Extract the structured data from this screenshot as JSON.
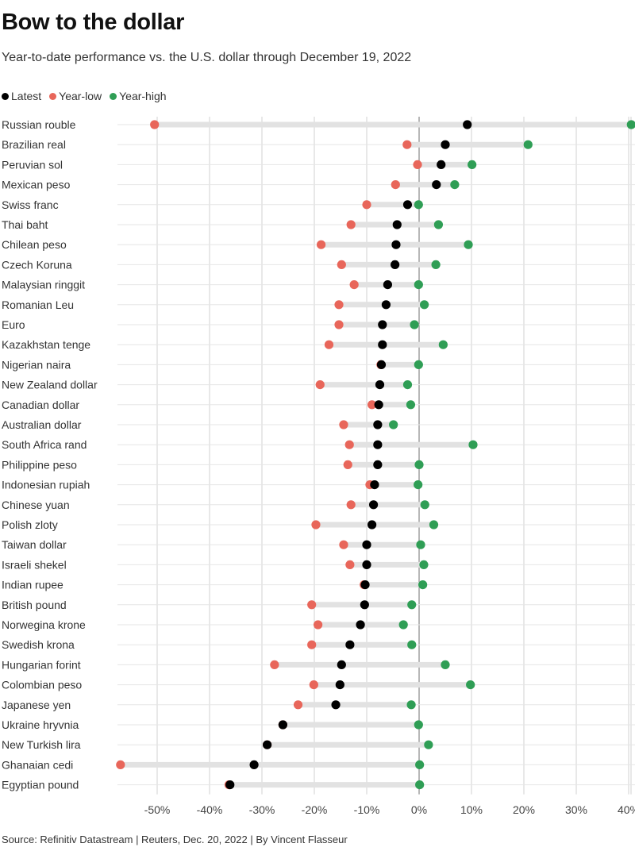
{
  "title": "Bow to the dollar",
  "subtitle": "Year-to-date performance vs. the U.S. dollar through December 19, 2022",
  "source": "Source: Refinitiv Datastream | Reuters, Dec. 20, 2022 | By Vincent Flasseur",
  "colors": {
    "latest": "#000000",
    "low": "#e8665a",
    "high": "#2f9e55",
    "bar": "#e2e2e2",
    "grid": "#d0d0d0",
    "zero": "#999999"
  },
  "chart_data": {
    "type": "dot-range",
    "title": "Bow to the dollar",
    "subtitle": "Year-to-date performance vs. the U.S. dollar through December 19, 2022",
    "xlim": [
      -58,
      41
    ],
    "x_ticks": [
      -50,
      -40,
      -30,
      -20,
      -10,
      0,
      10,
      20,
      30,
      40
    ],
    "x_tick_labels": [
      "-50%",
      "-40%",
      "-30%",
      "-20%",
      "-10%",
      "0%",
      "10%",
      "20%",
      "30%",
      "40%"
    ],
    "grid": true,
    "legend_position": "top-left",
    "legend": [
      {
        "key": "latest",
        "label": "Latest"
      },
      {
        "key": "low",
        "label": "Year-low"
      },
      {
        "key": "high",
        "label": "Year-high"
      }
    ],
    "categories": [
      "Russian rouble",
      "Brazilian real",
      "Peruvian sol",
      "Mexican peso",
      "Swiss franc",
      "Thai baht",
      "Chilean peso",
      "Czech Koruna",
      "Malaysian ringgit",
      "Romanian Leu",
      "Euro",
      "Kazakhstan tenge",
      "Nigerian naira",
      "New Zealand dollar",
      "Canadian dollar",
      "Australian dollar",
      "South Africa rand",
      "Philippine peso",
      "Indonesian rupiah",
      "Chinese yuan",
      "Polish zloty",
      "Taiwan dollar",
      "Israeli shekel",
      "Indian rupee",
      "British pound",
      "Norwegina krone",
      "Swedish krona",
      "Hungarian forint",
      "Colombian peso",
      "Japanese yen",
      "Ukraine hryvnia",
      "New Turkish lira",
      "Ghanaian cedi",
      "Egyptian pound"
    ],
    "series": [
      {
        "name": "Latest",
        "key": "latest",
        "values": [
          9.2,
          5.0,
          4.2,
          3.3,
          -2.2,
          -4.2,
          -4.4,
          -4.6,
          -6.0,
          -6.3,
          -7.0,
          -7.0,
          -7.2,
          -7.5,
          -7.7,
          -7.9,
          -7.9,
          -7.9,
          -8.5,
          -8.7,
          -9.0,
          -10.0,
          -10.0,
          -10.3,
          -10.4,
          -11.2,
          -13.2,
          -14.8,
          -15.1,
          -15.9,
          -26.0,
          -29.0,
          -31.5,
          -36.1
        ]
      },
      {
        "name": "Year-low",
        "key": "low",
        "values": [
          -50.5,
          -2.3,
          -0.3,
          -4.5,
          -10.0,
          -13.0,
          -18.7,
          -14.8,
          -12.4,
          -15.3,
          -15.3,
          -17.2,
          -7.3,
          -18.9,
          -9.0,
          -14.4,
          -13.3,
          -13.6,
          -9.4,
          -13.0,
          -19.7,
          -14.4,
          -13.2,
          -10.5,
          -20.5,
          -19.3,
          -20.5,
          -27.6,
          -20.1,
          -23.1,
          -26.0,
          -29.0,
          -57.0,
          -36.3
        ]
      },
      {
        "name": "Year-high",
        "key": "high",
        "values": [
          40.5,
          20.8,
          10.1,
          6.8,
          -0.1,
          3.7,
          9.4,
          3.2,
          -0.1,
          1.0,
          -0.9,
          4.6,
          -0.1,
          -2.2,
          -1.6,
          -4.9,
          10.3,
          0.0,
          -0.2,
          1.1,
          2.8,
          0.3,
          0.9,
          0.7,
          -1.4,
          -3.0,
          -1.4,
          5.0,
          9.8,
          -1.5,
          -0.1,
          1.8,
          0.1,
          0.1
        ]
      }
    ]
  }
}
